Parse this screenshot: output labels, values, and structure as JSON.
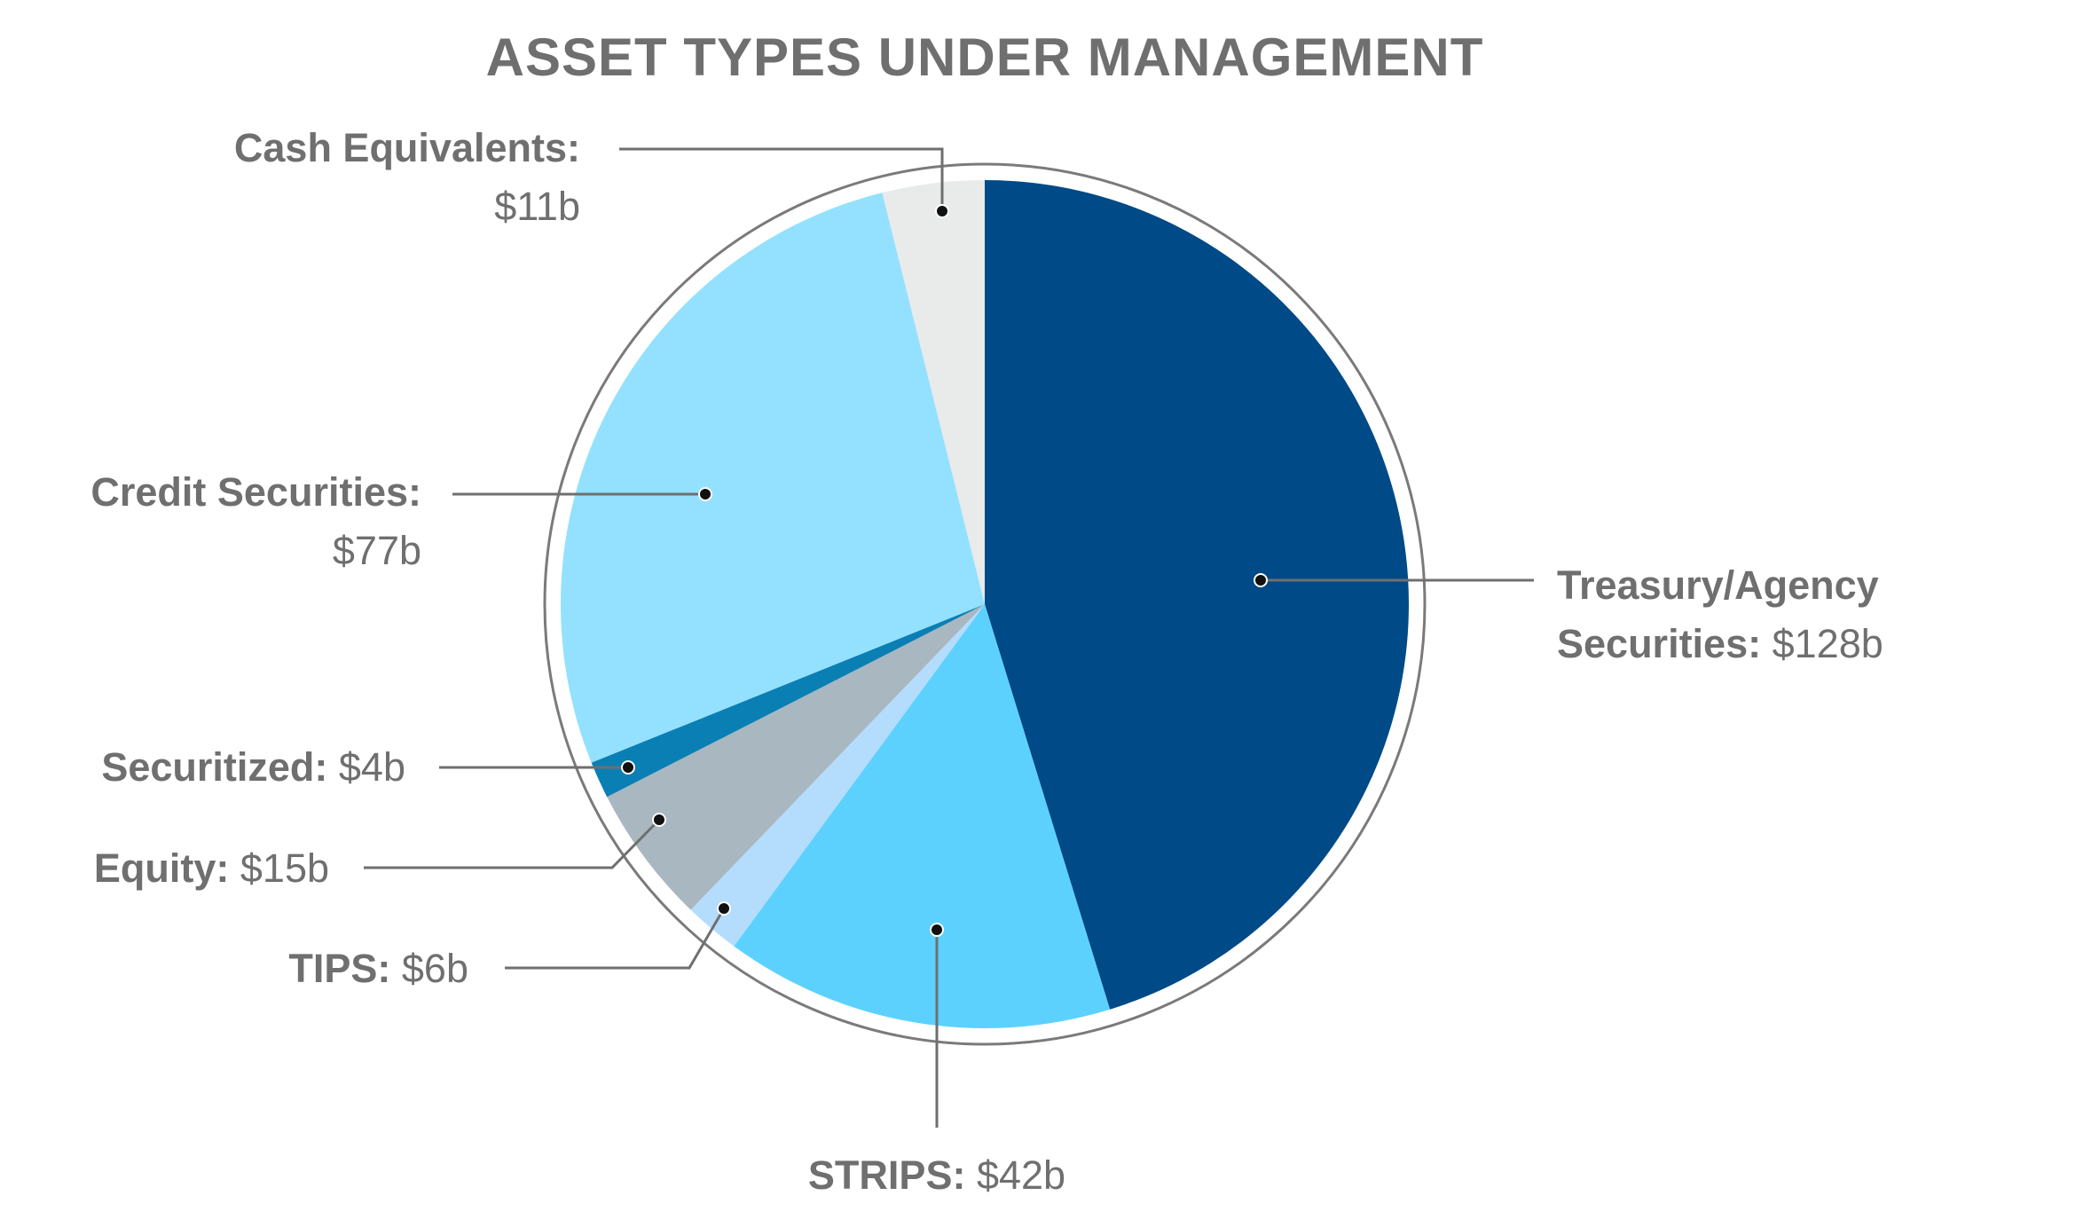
{
  "chart_data": {
    "type": "pie",
    "title": "ASSET TYPES UNDER MANAGEMENT",
    "categories": [
      "Treasury/Agency Securities:",
      "STRIPS:",
      "TIPS:",
      "Equity:",
      "Securitized:",
      "Credit Securities:",
      "Cash Equivalents:"
    ],
    "values": [
      128,
      42,
      6,
      15,
      4,
      77,
      11
    ],
    "value_labels": [
      "$128b",
      "$42b",
      "$6b",
      "$15b",
      "$4b",
      "$77b",
      "$11b"
    ],
    "colors": [
      "#004a87",
      "#5dd1fe",
      "#b3dcfd",
      "#a9b7c1",
      "#0a7fb4",
      "#93e1fe",
      "#e9eaea"
    ]
  }
}
